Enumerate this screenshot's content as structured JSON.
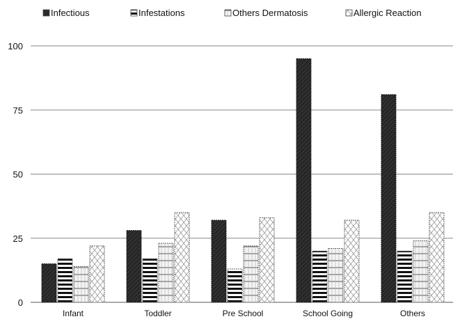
{
  "chart_data": {
    "type": "bar",
    "categories": [
      "Infant",
      "Toddler",
      "Pre School",
      "School Going",
      "Others"
    ],
    "series": [
      {
        "name": "Infectious",
        "values": [
          15,
          28,
          32,
          95,
          81
        ],
        "color": "#2b2b2b"
      },
      {
        "name": "Infestations",
        "values": [
          17,
          17,
          13,
          20,
          20
        ],
        "color": "#1a1a1a"
      },
      {
        "name": "Others Dermatosis",
        "values": [
          14,
          23,
          22,
          21,
          24
        ],
        "color": "#888888"
      },
      {
        "name": "Allergic Reaction",
        "values": [
          22,
          35,
          33,
          32,
          35
        ],
        "color": "#bbbbbb"
      }
    ],
    "yticks": [
      0,
      25,
      50,
      75,
      100
    ],
    "ylim": [
      0,
      100
    ],
    "grid": true,
    "legend": "top"
  }
}
